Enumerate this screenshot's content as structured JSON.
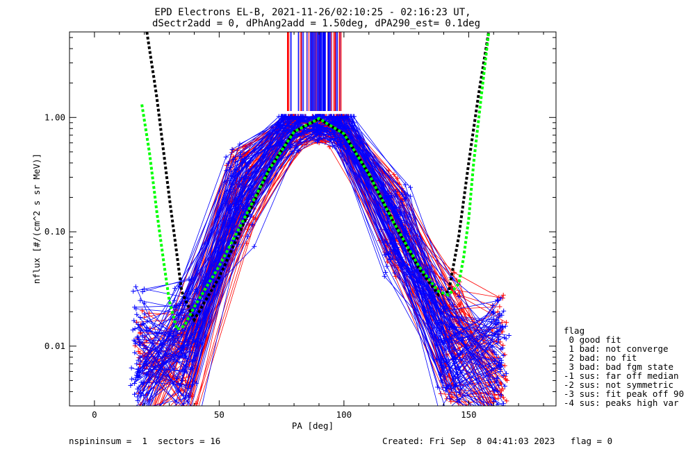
{
  "header": {
    "title_line1": "EPD Electrons EL-B, 2021-11-26/02:10:25 - 02:16:23 UT,",
    "title_line2": "dSectr2add = 0, dPhAng2add = 1.50deg, dPA290_est=   0.1deg"
  },
  "footer": {
    "left": "nspininsum =  1  sectors = 16",
    "right": "Created: Fri Sep  8 04:41:03 2023   flag = 0"
  },
  "legend": {
    "title": "flag",
    "items": [
      " 0 good fit",
      " 1 bad: not converge",
      " 2 bad: no fit",
      " 3 bad: bad fgm state",
      "-1 sus: far off median",
      "-2 sus: not symmetric",
      "-3 sus: fit peak off 90",
      "-4 sus: peaks high var"
    ]
  },
  "colors": {
    "series_red": "#ff0000",
    "series_blue": "#0000ff",
    "fit_black": "#000000",
    "fit_green": "#00ff00"
  },
  "chart_data": {
    "type": "line",
    "title": "EPD Electrons EL-B, 2021-11-26/02:10:25 - 02:16:23 UT,",
    "subtitle": "dSectr2add = 0, dPhAng2add = 1.50deg, dPA290_est=   0.1deg",
    "xlabel": "PA [deg]",
    "ylabel": "nflux [#/(cm^2 s sr MeV)]",
    "xlim": [
      -10,
      185
    ],
    "ylim": [
      0.003,
      5.6
    ],
    "yscale": "log",
    "xticks": [
      0,
      50,
      100,
      150
    ],
    "yticks": [
      0.01,
      0.1,
      1.0
    ],
    "ytick_labels": [
      "0.01",
      "0.10",
      "1.00"
    ],
    "grid": false,
    "legend_position": "right",
    "series": [
      {
        "name": "red sweeps (typical profile)",
        "color": "red",
        "x": [
          20,
          37,
          59,
          80,
          90,
          97,
          120,
          143,
          162
        ],
        "y": [
          0.005,
          0.009,
          0.25,
          0.95,
          0.9,
          0.93,
          0.12,
          0.011,
          0.006
        ]
      },
      {
        "name": "blue sweeps (typical profile)",
        "color": "blue",
        "x": [
          18,
          37,
          58,
          79,
          90,
          99,
          121,
          142,
          162
        ],
        "y": [
          0.007,
          0.01,
          0.22,
          0.9,
          0.95,
          0.9,
          0.1,
          0.01,
          0.006
        ]
      },
      {
        "name": "fit (black)",
        "color": "black",
        "x": [
          21,
          25,
          30,
          35,
          40,
          50,
          60,
          70,
          80,
          90,
          100,
          110,
          120,
          130,
          138,
          142,
          146,
          150,
          154,
          158
        ],
        "y": [
          5.6,
          1.5,
          0.2,
          0.03,
          0.017,
          0.04,
          0.12,
          0.35,
          0.75,
          0.97,
          0.72,
          0.32,
          0.12,
          0.048,
          0.028,
          0.03,
          0.09,
          0.4,
          1.6,
          5.6
        ]
      },
      {
        "name": "fit (green)",
        "color": "green",
        "x": [
          19,
          22,
          25,
          28,
          30,
          33,
          36,
          40,
          50,
          60,
          70,
          80,
          90,
          100,
          110,
          120,
          130,
          138,
          142,
          146,
          148,
          150,
          152,
          155,
          158
        ],
        "y": [
          1.3,
          0.5,
          0.15,
          0.05,
          0.025,
          0.014,
          0.015,
          0.022,
          0.05,
          0.13,
          0.35,
          0.75,
          0.98,
          0.72,
          0.32,
          0.12,
          0.05,
          0.03,
          0.028,
          0.035,
          0.06,
          0.13,
          0.4,
          1.5,
          5.5
        ]
      }
    ]
  }
}
